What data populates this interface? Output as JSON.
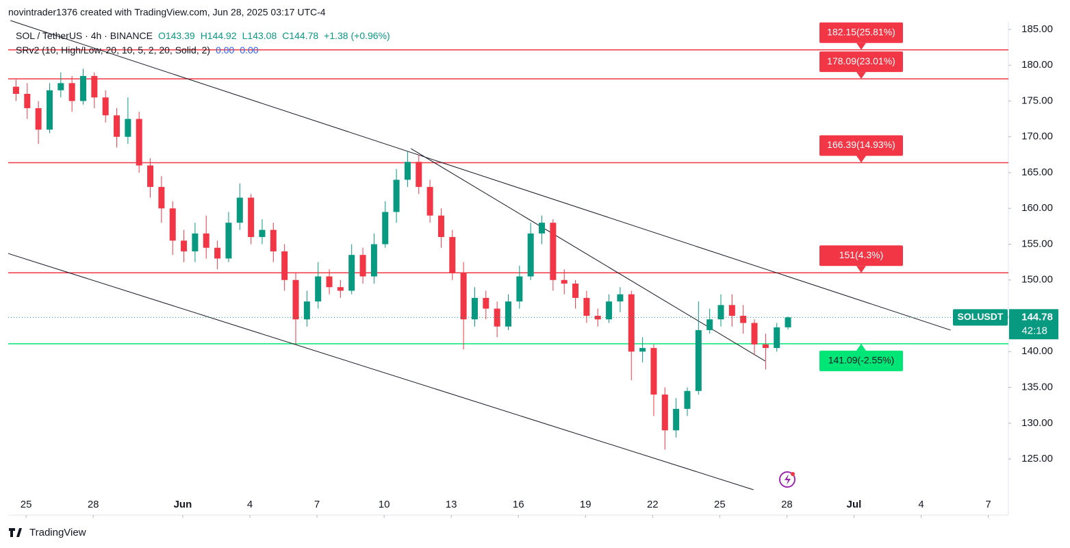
{
  "credit": "novintrader1376 created with TradingView.com, Jun 28, 2025 03:17 UTC-4",
  "footer": "TradingView",
  "chart_data": {
    "type": "candlestick",
    "title": "SOL / TetherUS · 4h · BINANCE",
    "ohlc_text": [
      "O143.39",
      "H144.92",
      "L143.08",
      "C144.78",
      "+1.38 (+0.96%)"
    ],
    "indicator": {
      "name": "SRv2 (10, High/Low, 20, 10, 5, 2, 20, Solid, 2)",
      "values": [
        "0.00",
        "0.00"
      ]
    },
    "up_color": "#089981",
    "down_color": "#f23645",
    "xlim": [
      -0.8,
      43.9
    ],
    "xticks": [
      {
        "value": 0,
        "label": "25"
      },
      {
        "value": 3,
        "label": "28"
      },
      {
        "value": 7,
        "label": "Jun"
      },
      {
        "value": 10,
        "label": "4"
      },
      {
        "value": 13,
        "label": "7"
      },
      {
        "value": 16,
        "label": "10"
      },
      {
        "value": 19,
        "label": "13"
      },
      {
        "value": 22,
        "label": "16"
      },
      {
        "value": 25,
        "label": "19"
      },
      {
        "value": 28,
        "label": "22"
      },
      {
        "value": 31,
        "label": "25"
      },
      {
        "value": 34,
        "label": "28"
      },
      {
        "value": 37,
        "label": "Jul"
      },
      {
        "value": 40,
        "label": "4"
      },
      {
        "value": 43,
        "label": "7"
      }
    ],
    "ylim": [
      120.22,
      189.11
    ],
    "yticks": [
      {
        "value": 125,
        "label": "125.00"
      },
      {
        "value": 130,
        "label": "130.00"
      },
      {
        "value": 135,
        "label": "135.00"
      },
      {
        "value": 140,
        "label": "140.00"
      },
      {
        "value": 145,
        "label": "145.00"
      },
      {
        "value": 150,
        "label": "150.00"
      },
      {
        "value": 155,
        "label": "155.00"
      },
      {
        "value": 160,
        "label": "160.00"
      },
      {
        "value": 165,
        "label": "165.00"
      },
      {
        "value": 170,
        "label": "170.00"
      },
      {
        "value": 175,
        "label": "175.00"
      },
      {
        "value": 180,
        "label": "180.00"
      },
      {
        "value": 185,
        "label": "185.00"
      }
    ],
    "x": [
      -0.45,
      0.05,
      0.55,
      1.05,
      1.55,
      2.05,
      2.55,
      3.05,
      3.55,
      4.05,
      4.55,
      5.05,
      5.55,
      6.05,
      6.55,
      7.05,
      7.55,
      8.05,
      8.55,
      9.05,
      9.55,
      10.05,
      10.55,
      11.05,
      11.55,
      12.05,
      12.55,
      13.05,
      13.55,
      14.05,
      14.55,
      15.05,
      15.55,
      16.05,
      16.55,
      17.05,
      17.55,
      18.05,
      18.55,
      19.05,
      19.55,
      20.05,
      20.55,
      21.05,
      21.55,
      22.05,
      22.55,
      23.05,
      23.55,
      24.05,
      24.55,
      25.05,
      25.55,
      26.05,
      26.55,
      27.05,
      27.55,
      28.05,
      28.55,
      29.05,
      29.55,
      30.05,
      30.55,
      31.05,
      31.55,
      32.05,
      32.55,
      33.05,
      33.55,
      34.05
    ],
    "open": [
      177,
      176,
      174,
      171,
      176.5,
      177.5,
      175,
      178.5,
      175.5,
      173,
      170,
      172.5,
      166,
      163,
      160,
      155.5,
      154,
      156.5,
      154.5,
      153,
      158,
      161.5,
      156,
      157,
      154,
      150,
      144.5,
      147,
      150.5,
      149,
      148.5,
      153.5,
      150.5,
      155,
      159.5,
      164,
      166.5,
      163,
      159,
      156,
      151,
      144.5,
      147.5,
      146,
      143.5,
      147,
      150.5,
      156.5,
      158,
      150,
      149.5,
      147.5,
      145,
      144.5,
      147,
      148,
      140,
      140.5,
      134,
      129,
      132,
      134.5,
      143,
      144.5,
      146.5,
      145,
      144,
      141,
      140.5,
      143.39
    ],
    "high": [
      178,
      177.5,
      175,
      177.5,
      179,
      178.5,
      179.5,
      179,
      176.5,
      174,
      175.5,
      173.5,
      167,
      164.5,
      161,
      157,
      158,
      159,
      155.5,
      159.5,
      163.5,
      162,
      158.5,
      158,
      155,
      151,
      148.5,
      152.5,
      151.5,
      150,
      155,
      154.5,
      156.5,
      161,
      165.5,
      168,
      167.5,
      164,
      160,
      157,
      152.5,
      149,
      148.5,
      147,
      148,
      152,
      158,
      159,
      158.5,
      151.5,
      150,
      148.5,
      146,
      148,
      149,
      148.5,
      142,
      141,
      135,
      133.5,
      135,
      147,
      146,
      148,
      148,
      146.5,
      144.5,
      142.5,
      144,
      144.92
    ],
    "low": [
      175,
      172.5,
      169,
      170.5,
      175.5,
      173.5,
      174.5,
      174,
      172,
      168.5,
      169,
      165,
      161.5,
      158,
      153.5,
      152.5,
      152.5,
      153,
      151.5,
      152.5,
      157,
      155,
      155,
      152.5,
      148.5,
      141,
      143.5,
      146,
      148,
      147.5,
      148,
      149.5,
      149.5,
      154.5,
      158,
      163,
      162,
      158,
      154.5,
      150,
      140.3,
      143.5,
      144.5,
      142,
      143,
      146,
      150,
      155,
      148.5,
      148,
      146,
      144,
      143.5,
      144,
      145.5,
      136,
      138.5,
      131,
      126.3,
      128,
      131,
      134,
      142.5,
      143.5,
      143.5,
      142.5,
      139.5,
      137.5,
      140,
      143.08
    ],
    "close": [
      176,
      174,
      171,
      176.5,
      177.5,
      175,
      178.5,
      175.5,
      173,
      170,
      172.5,
      166,
      163,
      160,
      155.5,
      154,
      156.5,
      154.5,
      153,
      158,
      161.5,
      156,
      157,
      154,
      150,
      144.5,
      147,
      150.5,
      149,
      148.5,
      153.5,
      150.5,
      155,
      159.5,
      164,
      166.5,
      163,
      159,
      156,
      151,
      144.5,
      147.5,
      146,
      143.5,
      147,
      150.5,
      156.5,
      158,
      150,
      149.5,
      147.5,
      145,
      144.5,
      147,
      148,
      140,
      140.5,
      134,
      129,
      132,
      134.5,
      143,
      144.5,
      146.5,
      145,
      144,
      141,
      140.5,
      143.39,
      144.78
    ],
    "levels": [
      {
        "value": 182.15,
        "label": "182.15(25.81%)",
        "color": "#f23645"
      },
      {
        "value": 178.09,
        "label": "178.09(23.01%)",
        "color": "#f23645"
      },
      {
        "value": 166.39,
        "label": "166.39(14.93%)",
        "color": "#f23645"
      },
      {
        "value": 151,
        "label": "151(4.3%)",
        "color": "#f23645"
      },
      {
        "value": 141.09,
        "label": "141.09(-2.55%)",
        "color": "#00e676"
      }
    ],
    "trendlines": [
      {
        "x": [
          -0.7,
          41.32
        ],
        "y": [
          186.24,
          143.0
        ]
      },
      {
        "x": [
          17.2,
          33.03
        ],
        "y": [
          168.35,
          138.68
        ]
      },
      {
        "x": [
          -0.8,
          32.51
        ],
        "y": [
          153.7,
          120.7
        ]
      }
    ],
    "last_price": {
      "symbol": "SOLUSDT",
      "value": 144.78,
      "countdown": "42:18"
    }
  }
}
